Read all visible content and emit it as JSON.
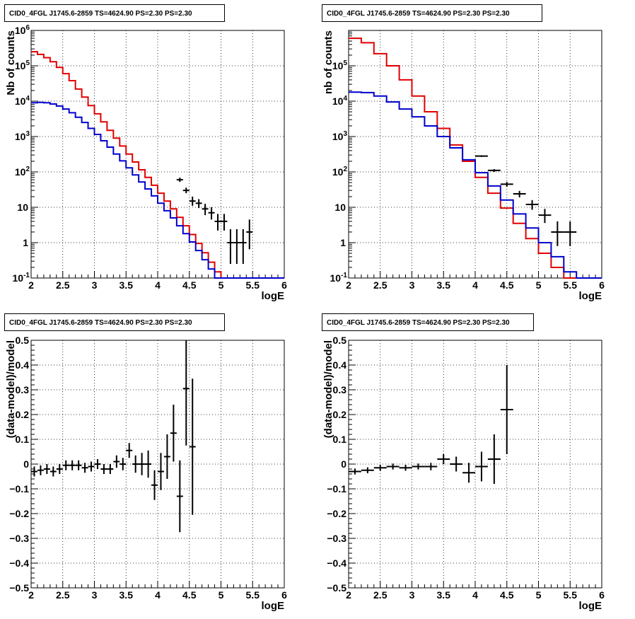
{
  "colors": {
    "data": "#000000",
    "model_red": "#e00000",
    "model_blue": "#0000cc",
    "grid": "#000000"
  },
  "chart_data": [
    {
      "type": "line",
      "title": "CID0_4FGL J1745.6-2859 TS=4624.90 PS=2.30 PS=2.30",
      "xlabel": "logE",
      "ylabel": "Nb of counts",
      "xlim": [
        2,
        6
      ],
      "ylim": [
        0.1,
        1000000
      ],
      "yscale": "log",
      "grid": true,
      "xticks": [
        "2",
        "2.5",
        "3",
        "3.5",
        "4",
        "4.5",
        "5",
        "5.5",
        "6"
      ],
      "yticks": [
        "10^-1",
        "1",
        "10",
        "10^2",
        "10^3",
        "10^4",
        "10^5",
        "10^6"
      ],
      "bin_edges": [
        2.0,
        2.1,
        2.2,
        2.3,
        2.4,
        2.5,
        2.6,
        2.7,
        2.8,
        2.9,
        3.0,
        3.1,
        3.2,
        3.3,
        3.4,
        3.5,
        3.6,
        3.7,
        3.8,
        3.9,
        4.0,
        4.1,
        4.2,
        4.3,
        4.4,
        4.5,
        4.6,
        4.7,
        4.8,
        4.9,
        5.0,
        5.1,
        5.2,
        5.3,
        5.4,
        5.5,
        5.6,
        5.7,
        5.8,
        5.9,
        6.0
      ],
      "series": [
        {
          "values": [
            250000,
            210000,
            170000,
            130000,
            90000,
            60000,
            38000,
            22000,
            13000,
            7500,
            4400,
            2600,
            1500,
            900,
            540,
            320,
            190,
            115,
            70,
            42,
            25,
            15,
            9,
            5.2,
            3.0,
            1.7,
            0.95,
            0.52,
            0.28,
            0.15,
            0.08,
            0.08,
            0.08,
            0.08,
            0.08,
            0.08,
            0.08,
            0.08,
            0.08,
            0.08
          ]
        },
        {
          "values": [
            9000,
            9200,
            9000,
            8300,
            7300,
            6000,
            4700,
            3500,
            2500,
            1700,
            1150,
            760,
            500,
            320,
            205,
            130,
            82,
            52,
            33,
            21,
            13,
            8.0,
            5.0,
            3.0,
            1.8,
            1.05,
            0.6,
            0.33,
            0.18,
            0.1,
            0.08,
            0.08,
            0.08,
            0.08,
            0.08,
            0.08,
            0.08,
            0.08,
            0.08,
            0.08
          ]
        }
      ],
      "points": [
        {
          "x": 4.35,
          "y": 60,
          "xerr": 0.05,
          "ylo": 52,
          "yhi": 69
        },
        {
          "x": 4.45,
          "y": 30,
          "xerr": 0.05,
          "ylo": 25,
          "yhi": 36
        },
        {
          "x": 4.55,
          "y": 15,
          "xerr": 0.05,
          "ylo": 11,
          "yhi": 20
        },
        {
          "x": 4.65,
          "y": 13,
          "xerr": 0.05,
          "ylo": 9.5,
          "yhi": 17
        },
        {
          "x": 4.75,
          "y": 9,
          "xerr": 0.05,
          "ylo": 6,
          "yhi": 12.5
        },
        {
          "x": 4.85,
          "y": 7,
          "xerr": 0.05,
          "ylo": 4.5,
          "yhi": 10
        },
        {
          "x": 4.95,
          "y": 4,
          "xerr": 0.05,
          "ylo": 2.2,
          "yhi": 6.5
        },
        {
          "x": 5.05,
          "y": 4,
          "xerr": 0.05,
          "ylo": 2.2,
          "yhi": 6.5
        },
        {
          "x": 5.15,
          "y": 1,
          "xerr": 0.05,
          "ylo": 0.25,
          "yhi": 2.4
        },
        {
          "x": 5.25,
          "y": 1,
          "xerr": 0.05,
          "ylo": 0.25,
          "yhi": 2.4
        },
        {
          "x": 5.35,
          "y": 1,
          "xerr": 0.05,
          "ylo": 0.25,
          "yhi": 2.4
        },
        {
          "x": 5.45,
          "y": 2,
          "xerr": 0.05,
          "ylo": 0.65,
          "yhi": 4.5
        }
      ]
    },
    {
      "type": "line",
      "title": "CID0_4FGL J1745.6-2859 TS=4624.90 PS=2.30 PS=2.30",
      "xlabel": "logE",
      "ylabel": "nb of counts",
      "xlim": [
        2,
        6
      ],
      "ylim": [
        0.1,
        1000000
      ],
      "yscale": "log",
      "grid": true,
      "xticks": [
        "2",
        "2.5",
        "3",
        "3.5",
        "4",
        "4.5",
        "5",
        "5.5",
        "6"
      ],
      "yticks": [
        "10^-1",
        "1",
        "10",
        "10^2",
        "10^3",
        "10^4",
        "10^5"
      ],
      "bin_edges": [
        2.0,
        2.2,
        2.4,
        2.6,
        2.8,
        3.0,
        3.2,
        3.4,
        3.6,
        3.8,
        4.0,
        4.2,
        4.4,
        4.6,
        4.8,
        5.0,
        5.2,
        5.4,
        5.6,
        5.8,
        6.0
      ],
      "series": [
        {
          "values": [
            600000,
            450000,
            220000,
            100000,
            40000,
            14000,
            5000,
            1700,
            580,
            200,
            70,
            25,
            9.5,
            3.5,
            1.3,
            0.5,
            0.2,
            0.08,
            0.08,
            0.08
          ]
        },
        {
          "values": [
            18000,
            17500,
            14000,
            9500,
            6000,
            3600,
            2000,
            1000,
            480,
            220,
            95,
            40,
            16,
            6.5,
            2.6,
            1.0,
            0.4,
            0.15,
            0.08,
            0.08
          ]
        }
      ],
      "points": [
        {
          "x": 4.1,
          "y": 280,
          "xerr": 0.1,
          "ylo": 265,
          "yhi": 295
        },
        {
          "x": 4.3,
          "y": 110,
          "xerr": 0.1,
          "ylo": 100,
          "yhi": 120
        },
        {
          "x": 4.5,
          "y": 45,
          "xerr": 0.1,
          "ylo": 38,
          "yhi": 52
        },
        {
          "x": 4.7,
          "y": 24,
          "xerr": 0.1,
          "ylo": 19,
          "yhi": 29
        },
        {
          "x": 4.9,
          "y": 12,
          "xerr": 0.1,
          "ylo": 8.5,
          "yhi": 16
        },
        {
          "x": 5.1,
          "y": 6,
          "xerr": 0.1,
          "ylo": 3.6,
          "yhi": 9
        },
        {
          "x": 5.3,
          "y": 2,
          "xerr": 0.1,
          "ylo": 0.8,
          "yhi": 4.0
        },
        {
          "x": 5.5,
          "y": 2,
          "xerr": 0.1,
          "ylo": 0.8,
          "yhi": 4.0
        }
      ]
    },
    {
      "type": "scatter",
      "title": "CID0_4FGL J1745.6-2859 TS=4624.90 PS=2.30 PS=2.30",
      "xlabel": "logE",
      "ylabel": "(data-model)/model",
      "xlim": [
        2,
        6
      ],
      "ylim": [
        -0.5,
        0.5
      ],
      "grid": true,
      "xticks": [
        "2",
        "2.5",
        "3",
        "3.5",
        "4",
        "4.5",
        "5",
        "5.5",
        "6"
      ],
      "yticks": [
        "−0.5",
        "−0.4",
        "−0.3",
        "−0.2",
        "−0.1",
        "0",
        "0.1",
        "0.2",
        "0.3",
        "0.4",
        "0.5"
      ],
      "points": [
        {
          "x": 2.05,
          "y": -0.03,
          "xerr": 0.05,
          "yerr": 0.02
        },
        {
          "x": 2.15,
          "y": -0.025,
          "xerr": 0.05,
          "yerr": 0.02
        },
        {
          "x": 2.25,
          "y": -0.02,
          "xerr": 0.05,
          "yerr": 0.02
        },
        {
          "x": 2.35,
          "y": -0.03,
          "xerr": 0.05,
          "yerr": 0.02
        },
        {
          "x": 2.45,
          "y": -0.02,
          "xerr": 0.05,
          "yerr": 0.02
        },
        {
          "x": 2.55,
          "y": -0.005,
          "xerr": 0.05,
          "yerr": 0.02
        },
        {
          "x": 2.65,
          "y": -0.005,
          "xerr": 0.05,
          "yerr": 0.02
        },
        {
          "x": 2.75,
          "y": -0.005,
          "xerr": 0.05,
          "yerr": 0.02
        },
        {
          "x": 2.85,
          "y": -0.015,
          "xerr": 0.05,
          "yerr": 0.02
        },
        {
          "x": 2.95,
          "y": -0.01,
          "xerr": 0.05,
          "yerr": 0.02
        },
        {
          "x": 3.05,
          "y": 0.0,
          "xerr": 0.05,
          "yerr": 0.02
        },
        {
          "x": 3.15,
          "y": -0.02,
          "xerr": 0.05,
          "yerr": 0.02
        },
        {
          "x": 3.25,
          "y": -0.02,
          "xerr": 0.05,
          "yerr": 0.02
        },
        {
          "x": 3.35,
          "y": 0.01,
          "xerr": 0.05,
          "yerr": 0.025
        },
        {
          "x": 3.45,
          "y": 0.0,
          "xerr": 0.05,
          "yerr": 0.025
        },
        {
          "x": 3.55,
          "y": 0.055,
          "xerr": 0.05,
          "yerr": 0.03
        },
        {
          "x": 3.65,
          "y": 0.0,
          "xerr": 0.05,
          "yerr": 0.035
        },
        {
          "x": 3.75,
          "y": 0.0,
          "xerr": 0.05,
          "yerr": 0.045
        },
        {
          "x": 3.85,
          "y": 0.0,
          "xerr": 0.05,
          "yerr": 0.055
        },
        {
          "x": 3.95,
          "y": -0.085,
          "xerr": 0.05,
          "yerr": 0.06
        },
        {
          "x": 4.05,
          "y": -0.03,
          "xerr": 0.05,
          "yerr": 0.075
        },
        {
          "x": 4.15,
          "y": 0.03,
          "xerr": 0.05,
          "yerr": 0.09
        },
        {
          "x": 4.25,
          "y": 0.125,
          "xerr": 0.05,
          "yerr": 0.115
        },
        {
          "x": 4.35,
          "y": -0.13,
          "xerr": 0.05,
          "yerr": 0.145
        },
        {
          "x": 4.45,
          "y": 0.305,
          "xerr": 0.05,
          "yerr": 0.23
        },
        {
          "x": 4.55,
          "y": 0.07,
          "xerr": 0.05,
          "yerr": 0.275
        }
      ]
    },
    {
      "type": "scatter",
      "title": "CID0_4FGL J1745.6-2859 TS=4624.90 PS=2.30 PS=2.30",
      "xlabel": "logE",
      "ylabel": "(data-model)/model",
      "xlim": [
        2,
        6
      ],
      "ylim": [
        -0.5,
        0.5
      ],
      "grid": true,
      "xticks": [
        "2",
        "2.5",
        "3",
        "3.5",
        "4",
        "4.5",
        "5",
        "5.5",
        "6"
      ],
      "yticks": [
        "−0.5",
        "−0.4",
        "−0.3",
        "−0.2",
        "−0.1",
        "0",
        "0.1",
        "0.2",
        "0.3",
        "0.4",
        "0.5"
      ],
      "points": [
        {
          "x": 2.1,
          "y": -0.03,
          "xerr": 0.1,
          "yerr": 0.012
        },
        {
          "x": 2.3,
          "y": -0.025,
          "xerr": 0.1,
          "yerr": 0.012
        },
        {
          "x": 2.5,
          "y": -0.015,
          "xerr": 0.1,
          "yerr": 0.012
        },
        {
          "x": 2.7,
          "y": -0.01,
          "xerr": 0.1,
          "yerr": 0.012
        },
        {
          "x": 2.9,
          "y": -0.015,
          "xerr": 0.1,
          "yerr": 0.012
        },
        {
          "x": 3.1,
          "y": -0.01,
          "xerr": 0.1,
          "yerr": 0.012
        },
        {
          "x": 3.3,
          "y": -0.01,
          "xerr": 0.1,
          "yerr": 0.015
        },
        {
          "x": 3.5,
          "y": 0.02,
          "xerr": 0.1,
          "yerr": 0.02
        },
        {
          "x": 3.7,
          "y": 0.0,
          "xerr": 0.1,
          "yerr": 0.03
        },
        {
          "x": 3.9,
          "y": -0.035,
          "xerr": 0.1,
          "yerr": 0.04
        },
        {
          "x": 4.1,
          "y": -0.01,
          "xerr": 0.1,
          "yerr": 0.06
        },
        {
          "x": 4.3,
          "y": 0.02,
          "xerr": 0.1,
          "yerr": 0.1
        },
        {
          "x": 4.5,
          "y": 0.22,
          "xerr": 0.1,
          "yerr": 0.18
        }
      ]
    }
  ]
}
